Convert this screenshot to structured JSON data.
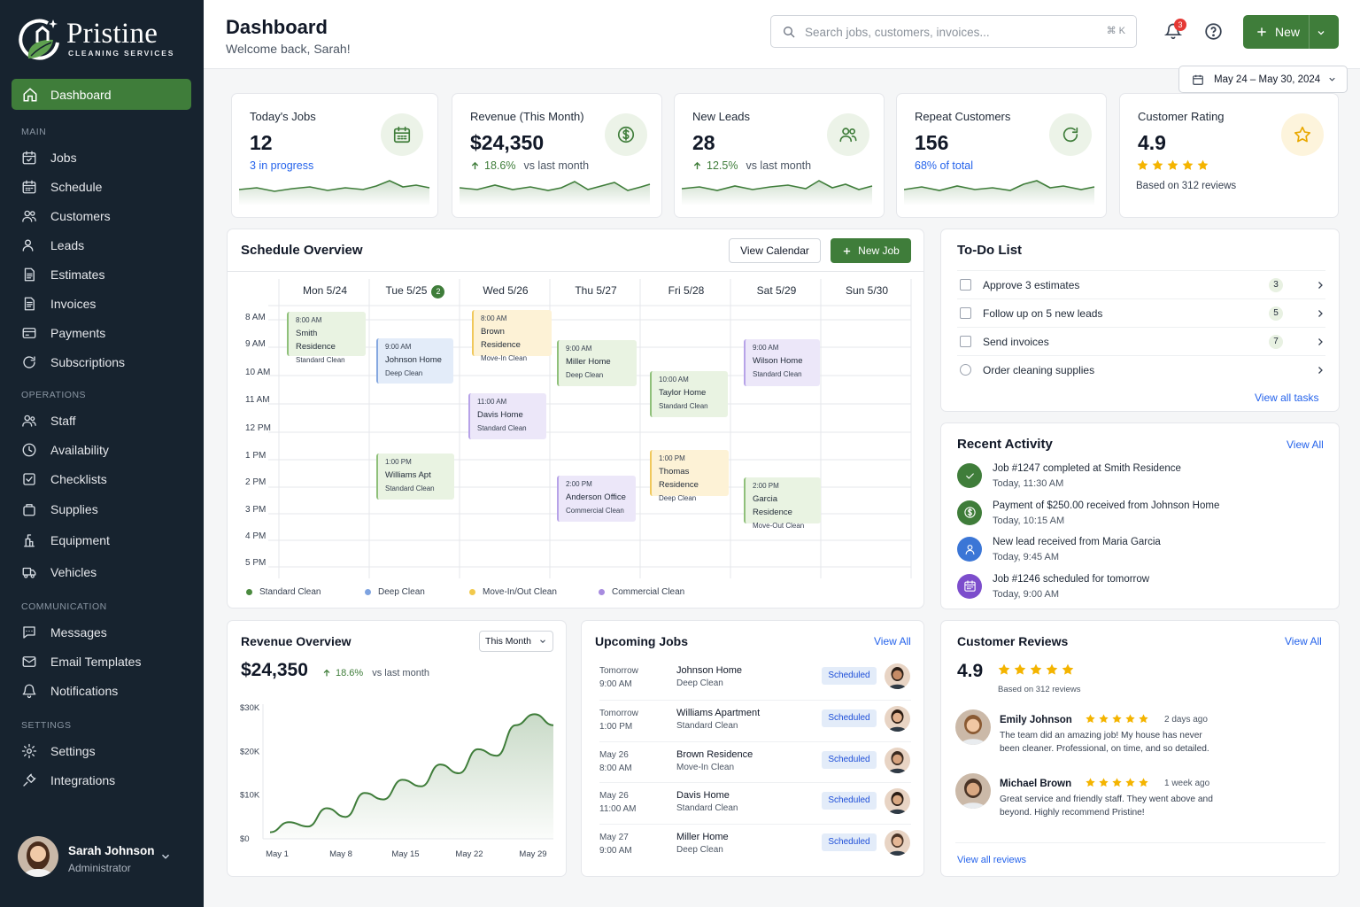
{
  "brand": {
    "name": "Pristine",
    "tagline": "CLEANING SERVICES",
    "accent": "#3f7d3a",
    "sidebar_bg": "#17232f"
  },
  "sidebar": {
    "active": {
      "label": "Dashboard",
      "icon": "home-icon"
    },
    "sections": [
      {
        "label": "MAIN",
        "items": [
          {
            "label": "Jobs",
            "icon": "calendar-check-icon"
          },
          {
            "label": "Schedule",
            "icon": "calendar-icon"
          },
          {
            "label": "Customers",
            "icon": "users-icon"
          },
          {
            "label": "Leads",
            "icon": "user-plus-icon"
          },
          {
            "label": "Estimates",
            "icon": "document-icon"
          },
          {
            "label": "Invoices",
            "icon": "invoice-icon"
          },
          {
            "label": "Payments",
            "icon": "credit-card-icon"
          },
          {
            "label": "Subscriptions",
            "icon": "refresh-icon"
          }
        ]
      },
      {
        "label": "OPERATIONS",
        "items": [
          {
            "label": "Staff",
            "icon": "staff-icon"
          },
          {
            "label": "Availability",
            "icon": "clock-icon"
          },
          {
            "label": "Checklists",
            "icon": "checklist-icon"
          },
          {
            "label": "Supplies",
            "icon": "box-icon"
          },
          {
            "label": "Equipment",
            "icon": "equipment-icon"
          },
          {
            "label": "Vehicles",
            "icon": "truck-icon"
          }
        ]
      },
      {
        "label": "COMMUNICATION",
        "items": [
          {
            "label": "Messages",
            "icon": "message-icon"
          },
          {
            "label": "Email Templates",
            "icon": "mail-icon"
          },
          {
            "label": "Notifications",
            "icon": "bell-icon"
          }
        ]
      },
      {
        "label": "SETTINGS",
        "items": [
          {
            "label": "Settings",
            "icon": "gear-icon"
          },
          {
            "label": "Integrations",
            "icon": "plug-icon"
          }
        ]
      }
    ],
    "user": {
      "name": "Sarah Johnson",
      "role": "Administrator"
    }
  },
  "header": {
    "title": "Dashboard",
    "subtitle": "Welcome back, Sarah!",
    "search_placeholder": "Search jobs, customers, invoices...",
    "search_shortcut": "⌘ K",
    "notification_count": "3",
    "new_label": "New",
    "date_range": "May 24 – May 30, 2024"
  },
  "stats": [
    {
      "title": "Today's Jobs",
      "value": "12",
      "sub": "3 in progress",
      "icon": "calendar-grid-icon"
    },
    {
      "title": "Revenue (This Month)",
      "value": "$24,350",
      "delta": "18.6%",
      "vs": "vs last month",
      "icon": "dollar-icon"
    },
    {
      "title": "New Leads",
      "value": "28",
      "delta": "12.5%",
      "vs": "vs last month",
      "icon": "users-icon"
    },
    {
      "title": "Repeat Customers",
      "value": "156",
      "sub": "68% of total",
      "icon": "refresh-icon"
    },
    {
      "title": "Customer Rating",
      "value": "4.9",
      "rating": 5,
      "sub": "Based on 312 reviews",
      "icon": "star-icon"
    }
  ],
  "schedule": {
    "title": "Schedule Overview",
    "view_calendar": "View Calendar",
    "new_job": "New Job",
    "days": [
      "Mon 5/24",
      "Tue 5/25",
      "Wed 5/26",
      "Thu 5/27",
      "Fri 5/28",
      "Sat 5/29",
      "Sun 5/30"
    ],
    "today_badge": "2",
    "times": [
      "8 AM",
      "9 AM",
      "10 AM",
      "11 AM",
      "12 PM",
      "1 PM",
      "2 PM",
      "3 PM",
      "4 PM",
      "5 PM"
    ],
    "events": [
      {
        "time": "8:00 AM",
        "name": "Smith Residence",
        "type": "Standard Clean"
      },
      {
        "time": "9:00 AM",
        "name": "Johnson Home",
        "type": "Deep Clean"
      },
      {
        "time": "1:00 PM",
        "name": "Williams Apt",
        "type": "Standard Clean"
      },
      {
        "time": "8:00 AM",
        "name": "Brown Residence",
        "type": "Move-In Clean"
      },
      {
        "time": "11:00 AM",
        "name": "Davis Home",
        "type": "Standard Clean"
      },
      {
        "time": "9:00 AM",
        "name": "Miller Home",
        "type": "Deep Clean"
      },
      {
        "time": "2:00 PM",
        "name": "Anderson Office",
        "type": "Commercial Clean"
      },
      {
        "time": "10:00 AM",
        "name": "Taylor Home",
        "type": "Standard Clean"
      },
      {
        "time": "1:00 PM",
        "name": "Thomas Residence",
        "type": "Deep Clean"
      },
      {
        "time": "9:00 AM",
        "name": "Wilson Home",
        "type": "Standard Clean"
      },
      {
        "time": "2:00 PM",
        "name": "Garcia Residence",
        "type": "Move-Out Clean"
      }
    ],
    "legend": [
      {
        "label": "Standard Clean",
        "color": "#4a8a3f"
      },
      {
        "label": "Deep Clean",
        "color": "#7ea3e0"
      },
      {
        "label": "Move-In/Out Clean",
        "color": "#f2c94c"
      },
      {
        "label": "Commercial Clean",
        "color": "#a78bdf"
      }
    ]
  },
  "todo": {
    "title": "To-Do List",
    "items": [
      {
        "label": "Approve 3 estimates",
        "count": "3"
      },
      {
        "label": "Follow up on 5 new leads",
        "count": "5"
      },
      {
        "label": "Send invoices",
        "count": "7"
      },
      {
        "label": "Order cleaning supplies",
        "count": ""
      }
    ],
    "view_all": "View all tasks"
  },
  "activity": {
    "title": "Recent Activity",
    "view_all": "View All",
    "items": [
      {
        "text": "Job #1247 completed at Smith Residence",
        "time": "Today, 11:30 AM",
        "icon": "check-icon",
        "color": "#3f7d3a"
      },
      {
        "text": "Payment of $250.00 received from Johnson Home",
        "time": "Today, 10:15 AM",
        "icon": "dollar-icon",
        "color": "#3f7d3a"
      },
      {
        "text": "New lead received from Maria Garcia",
        "time": "Today, 9:45 AM",
        "icon": "user-icon",
        "color": "#3b76d6"
      },
      {
        "text": "Job #1246 scheduled for tomorrow",
        "time": "Today, 9:00 AM",
        "icon": "calendar-icon",
        "color": "#7c4dcc"
      }
    ]
  },
  "revenue": {
    "title": "Revenue Overview",
    "period": "This Month",
    "total": "$24,350",
    "delta": "18.6%",
    "vs": "vs last month",
    "chart_data": {
      "type": "area",
      "x": [
        "May 1",
        "May 3",
        "May 5",
        "May 7",
        "May 9",
        "May 11",
        "May 13",
        "May 15",
        "May 17",
        "May 19",
        "May 21",
        "May 23",
        "May 25",
        "May 27",
        "May 29",
        "May 30"
      ],
      "values": [
        1500,
        3800,
        2800,
        7000,
        5000,
        10500,
        9000,
        13500,
        12000,
        17000,
        15000,
        20500,
        19000,
        26000,
        28500,
        26000
      ],
      "xticks": [
        "May 1",
        "May 8",
        "May 15",
        "May 22",
        "May 29"
      ],
      "yticks": [
        "$0",
        "$10K",
        "$20K",
        "$30K"
      ],
      "ylim": [
        0,
        30000
      ]
    }
  },
  "upcoming": {
    "title": "Upcoming Jobs",
    "view_all": "View All",
    "jobs": [
      {
        "day": "Tomorrow",
        "time": "9:00 AM",
        "name": "Johnson Home",
        "type": "Deep Clean",
        "status": "Scheduled"
      },
      {
        "day": "Tomorrow",
        "time": "1:00 PM",
        "name": "Williams Apartment",
        "type": "Standard Clean",
        "status": "Scheduled"
      },
      {
        "day": "May 26",
        "time": "8:00 AM",
        "name": "Brown Residence",
        "type": "Move-In Clean",
        "status": "Scheduled"
      },
      {
        "day": "May 26",
        "time": "11:00 AM",
        "name": "Davis Home",
        "type": "Standard Clean",
        "status": "Scheduled"
      },
      {
        "day": "May 27",
        "time": "9:00 AM",
        "name": "Miller Home",
        "type": "Deep Clean",
        "status": "Scheduled"
      }
    ]
  },
  "reviews": {
    "title": "Customer Reviews",
    "view_all": "View All",
    "rating": "4.9",
    "based_on": "Based on 312 reviews",
    "items": [
      {
        "name": "Emily Johnson",
        "ago": "2 days ago",
        "stars": 5,
        "text": "The team did an amazing job! My house has never been cleaner. Professional, on time, and so detailed."
      },
      {
        "name": "Michael Brown",
        "ago": "1 week ago",
        "stars": 5,
        "text": "Great service and friendly staff. They went above and beyond. Highly recommend Pristine!"
      }
    ],
    "view_all_reviews": "View all reviews"
  }
}
